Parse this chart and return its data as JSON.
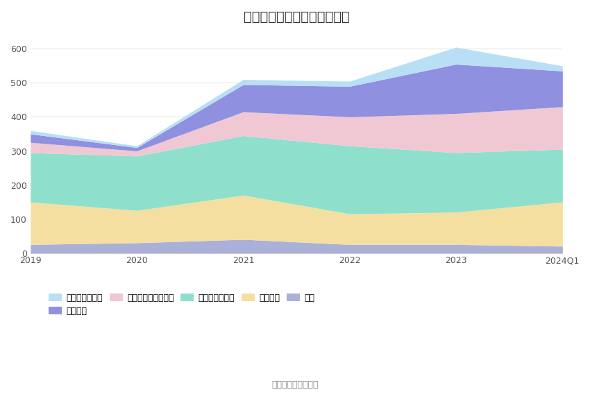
{
  "title": "历年主要负债堆积图（亿元）",
  "source": "数据来源：恒生聚源",
  "x_labels": [
    "2019",
    "2020",
    "2021",
    "2022",
    "2023",
    "2024Q1"
  ],
  "series": [
    {
      "name": "其它",
      "color": "#aab0d8",
      "values": [
        25,
        30,
        40,
        25,
        25,
        20
      ]
    },
    {
      "name": "应付债券",
      "color": "#f5dfa0",
      "values": [
        125,
        95,
        130,
        90,
        95,
        130
      ]
    },
    {
      "name": "代理买卖证券款",
      "color": "#8ee0cc",
      "values": [
        145,
        160,
        175,
        200,
        175,
        155
      ]
    },
    {
      "name": "卖出回购金融资产款",
      "color": "#f0c8d4",
      "values": [
        30,
        15,
        70,
        85,
        115,
        125
      ]
    },
    {
      "name": "折入资金",
      "color": "#9090e0",
      "values": [
        25,
        10,
        80,
        90,
        145,
        105
      ]
    },
    {
      "name": "应付短期融资款",
      "color": "#b8dff5",
      "values": [
        10,
        5,
        15,
        15,
        50,
        15
      ]
    }
  ],
  "ylim": [
    0,
    640
  ],
  "yticks": [
    0,
    100,
    200,
    300,
    400,
    500,
    600
  ],
  "legend_order": [
    "应付短期融资款",
    "折入资金",
    "卖出回购金融资产款",
    "代理买卖证券款",
    "应付债券",
    "其它"
  ],
  "background_color": "#ffffff",
  "grid_color": "#e8e8e8",
  "title_fontsize": 14,
  "tick_fontsize": 9,
  "legend_fontsize": 9
}
